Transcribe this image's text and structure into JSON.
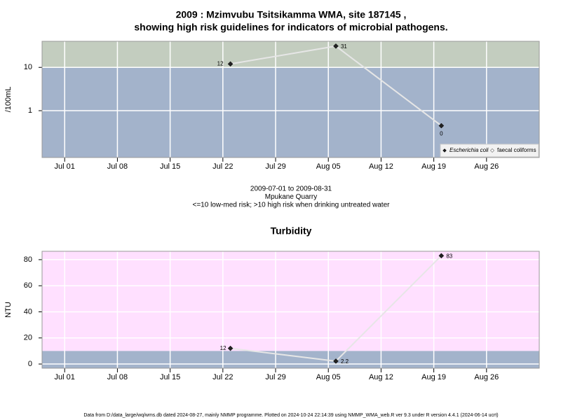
{
  "chart_data": [
    {
      "type": "line",
      "title": [
        "2009 : Mzimvubu Tsitsikamma WMA, site 187145 ,",
        "showing high risk guidelines for indicators of microbial pathogens."
      ],
      "ylabel": "/100mL",
      "log_y": true,
      "ylim": [
        0.083,
        40
      ],
      "yticks": [
        1,
        10
      ],
      "xlim": [
        "Jun 28",
        "Sep 02"
      ],
      "xticks": [
        "Jul 01",
        "Jul 08",
        "Jul 15",
        "Jul 22",
        "Jul 29",
        "Aug 05",
        "Aug 12",
        "Aug 19",
        "Aug 26"
      ],
      "x": [
        "Jul 23",
        "Aug 06",
        "Aug 20"
      ],
      "guideline": 10,
      "above_color": "#c3cdbf",
      "below_color": "#a3b3cb",
      "grid": true,
      "legend": "bottom-right",
      "series": [
        {
          "name": "Escherichia coli",
          "color": "#222222",
          "line_color": "#e6e6e6",
          "values": [
            12,
            31,
            0.45
          ],
          "value_labels": [
            "12",
            "31",
            "0"
          ]
        },
        {
          "name": "faecal coliforms",
          "color": "#ffffff",
          "line_color": "#e6e6e6",
          "values": [
            null,
            null,
            null
          ]
        }
      ],
      "notes": [
        "2009-07-01 to 2009-08-31",
        "Mpukane Quarry",
        "<=10 low-med risk; >10 high risk when drinking untreated water"
      ]
    },
    {
      "type": "line",
      "title": [
        "Turbidity"
      ],
      "ylabel": "NTU",
      "log_y": false,
      "ylim": [
        -3.2,
        86.4
      ],
      "yticks": [
        0,
        20,
        40,
        60,
        80
      ],
      "xlim": [
        "Jun 28",
        "Sep 02"
      ],
      "xticks": [
        "Jul 01",
        "Jul 08",
        "Jul 15",
        "Jul 22",
        "Jul 29",
        "Aug 05",
        "Aug 12",
        "Aug 19",
        "Aug 26"
      ],
      "x": [
        "Jul 23",
        "Aug 06",
        "Aug 20"
      ],
      "guideline": 10,
      "above_color": "#ffe0ff",
      "below_color": "#a3b3cb",
      "grid": true,
      "series": [
        {
          "name": "Turbidity",
          "color": "#222222",
          "line_color": "#e6e6e6",
          "values": [
            12,
            2.2,
            83
          ]
        }
      ]
    }
  ],
  "footer": "Data from D:/data_large/wq/wms.db dated 2024-08-27, mainly NMMP programme. Plotted on 2024-10-24 22:14:39 using NMMP_WMA_web.R ver 9.3 under R version 4.4.1 (2024-06-14 ucrt)"
}
